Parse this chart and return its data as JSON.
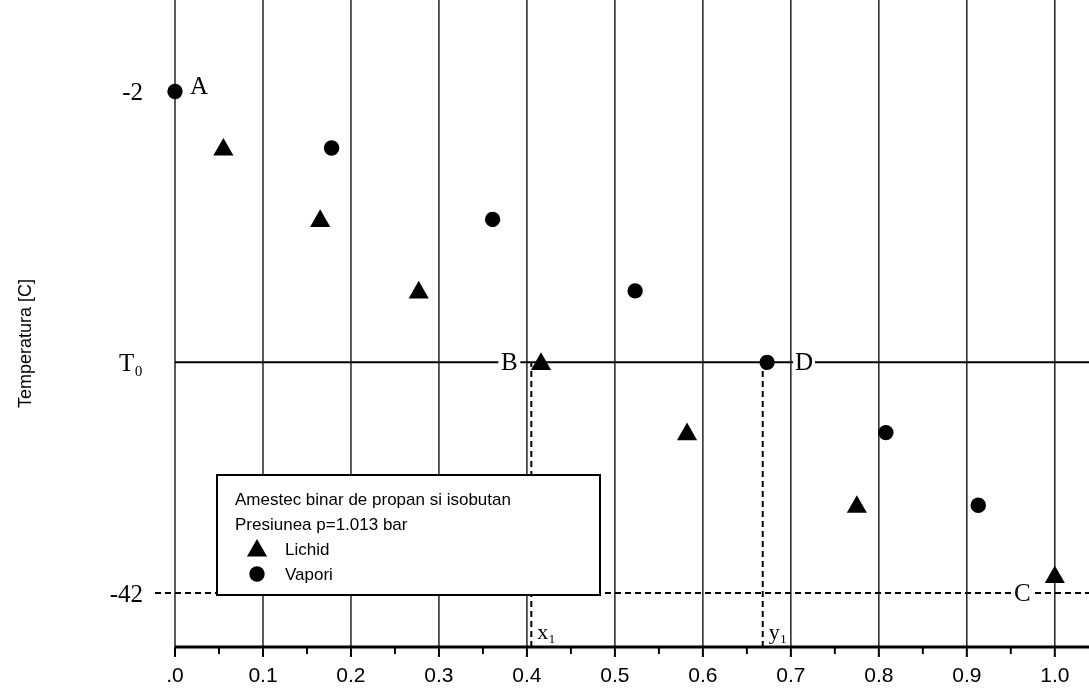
{
  "chart_data": {
    "type": "scatter",
    "ylabel": "Temperatura [C]",
    "legend_title": "Amestec binar de propan si isobutan\nPresiunea p=1.013 bar",
    "legend": "bottom left",
    "grid": "x",
    "xlim": [
      0,
      1.04
    ],
    "ylim": [
      -46.3,
      5.3
    ],
    "xticks": [
      {
        "value": 0,
        "label": ".0"
      },
      {
        "value": 0.05,
        "label": null
      },
      0.1,
      {
        "value": 0.15,
        "label": null
      },
      0.2,
      {
        "value": 0.25,
        "label": null
      },
      0.3,
      {
        "value": 0.35,
        "label": null
      },
      0.4,
      {
        "value": 0.45,
        "label": null
      },
      0.5,
      {
        "value": 0.55,
        "label": null
      },
      0.6,
      {
        "value": 0.65,
        "label": null
      },
      0.7,
      {
        "value": 0.75,
        "label": null
      },
      0.8,
      {
        "value": 0.85,
        "label": null
      },
      0.9,
      {
        "value": 0.95,
        "label": null
      },
      {
        "value": 1,
        "label": "1.0"
      }
    ],
    "yticks": [
      -2,
      {
        "value": -23.6,
        "label": "T₀"
      },
      -42
    ],
    "series": [
      {
        "name": "Lichid",
        "color": "#000000",
        "marker": "triangle",
        "x": [
          0.055,
          0.165,
          0.277,
          0.416,
          0.582,
          0.775,
          1.0
        ],
        "values": [
          -6.5,
          -12.2,
          -17.9,
          -23.6,
          -29.2,
          -35.0,
          -40.6
        ]
      },
      {
        "name": "Vapori",
        "color": "#000000",
        "marker": "circle",
        "x": [
          0,
          0.178,
          0.361,
          0.523,
          0.673,
          0.808,
          0.913
        ],
        "values": [
          -2,
          -6.5,
          -12.2,
          -17.9,
          -23.6,
          -29.2,
          -35.0
        ]
      }
    ],
    "ref_lines": [
      {
        "axis": "y",
        "value": -23.6,
        "line_style": "solid"
      },
      {
        "axis": "y",
        "value": -42,
        "line_style": "dashed"
      },
      {
        "axis": "x",
        "value": 0.405,
        "line_style": "dashed"
      },
      {
        "axis": "x",
        "value": 0.668,
        "line_style": "dashed"
      }
    ],
    "annotations": [
      {
        "text": "A",
        "x": 0,
        "y": -2
      },
      {
        "text": "B",
        "x": 0.38,
        "y": -23.6
      },
      {
        "text": "D",
        "x": 0.715,
        "y": -23.6
      },
      {
        "text": "C",
        "x": 0.963,
        "y": -42
      },
      {
        "text": "x₁",
        "x": 0.405,
        "y": -46.3
      },
      {
        "text": "y₁",
        "x": 0.668,
        "y": -46.3
      }
    ]
  }
}
